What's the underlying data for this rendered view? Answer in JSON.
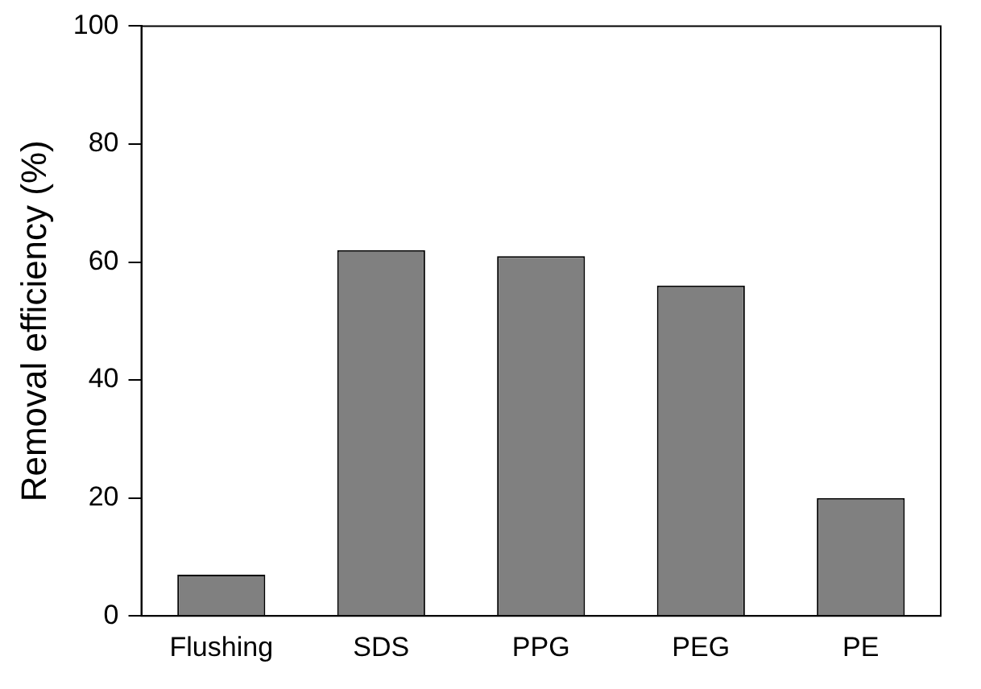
{
  "chart_data": {
    "type": "bar",
    "ylabel": "Removal efficiency (%)",
    "categories": [
      "Flushing",
      "SDS",
      "PPG",
      "PEG",
      "PE"
    ],
    "values": [
      7,
      62,
      61,
      56,
      20
    ],
    "color": "#808080",
    "ylim": [
      0,
      100
    ],
    "yticks": [
      0,
      20,
      40,
      60,
      80,
      100
    ],
    "grid": false,
    "legend": false
  }
}
